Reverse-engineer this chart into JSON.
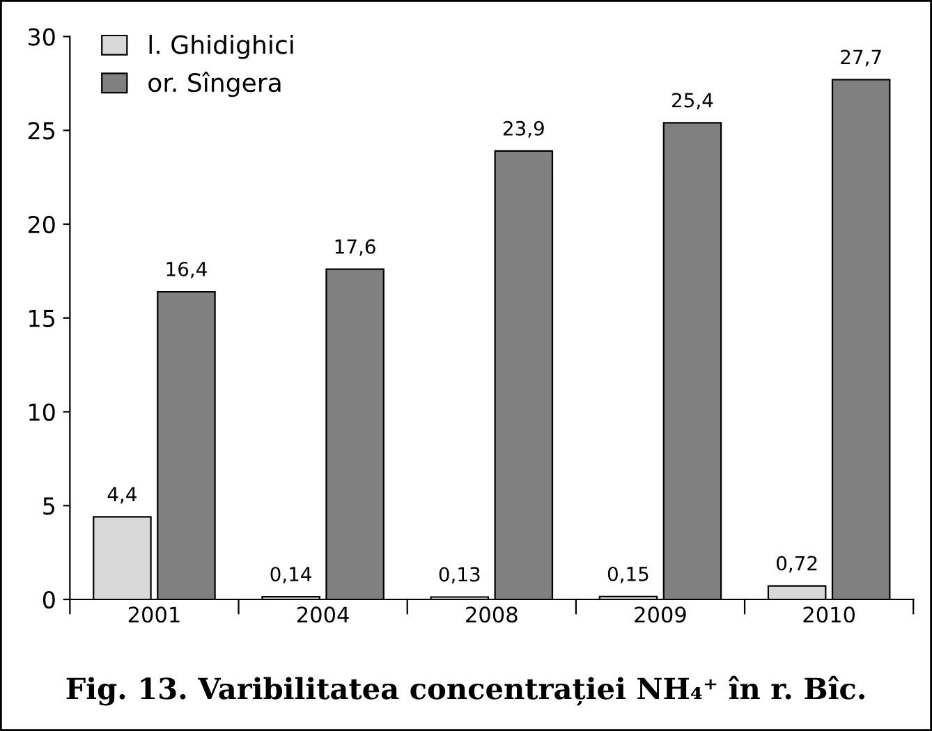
{
  "chart_data": {
    "type": "bar",
    "title": "Fig. 13. Varibilitatea concentrației NH₄⁺ în r. Bîc.",
    "categories": [
      "2001",
      "2004",
      "2008",
      "2009",
      "2010"
    ],
    "series": [
      {
        "name": "l. Ghidighici",
        "color": "#d9d9d9",
        "values": [
          4.4,
          0.14,
          0.13,
          0.15,
          0.72
        ],
        "value_labels": [
          "4,4",
          "0,14",
          "0,13",
          "0,15",
          "0,72"
        ]
      },
      {
        "name": "or. Sîngera",
        "color": "#808080",
        "values": [
          16.4,
          17.6,
          23.9,
          25.4,
          27.7
        ],
        "value_labels": [
          "16,4",
          "17,6",
          "23,9",
          "25,4",
          "27,7"
        ]
      }
    ],
    "ylim": [
      0,
      30
    ],
    "yticks": [
      0,
      5,
      10,
      15,
      20,
      25,
      30
    ],
    "grid": false,
    "legend": "top left"
  }
}
